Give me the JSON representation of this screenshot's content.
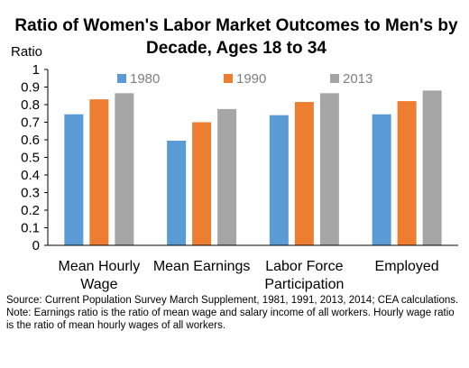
{
  "chart_data": {
    "type": "bar",
    "title_lines": [
      "Ratio of Women's Labor Market Outcomes to Men's by",
      "Decade, Ages 18 to 34"
    ],
    "ylabel": "Ratio",
    "xlabel": "",
    "ylim": [
      0,
      1
    ],
    "yticks": [
      "0",
      "0.1",
      "0.2",
      "0.3",
      "0.4",
      "0.5",
      "0.6",
      "0.7",
      "0.8",
      "0.9",
      "1"
    ],
    "categories": [
      [
        "Mean Hourly",
        "Wage"
      ],
      [
        "Mean Earnings"
      ],
      [
        "Labor Force",
        "Participation"
      ],
      [
        "Employed"
      ]
    ],
    "series": [
      {
        "name": "1980",
        "color": "#5b9bd5",
        "values": [
          0.745,
          0.595,
          0.74,
          0.745
        ]
      },
      {
        "name": "1990",
        "color": "#ed7d31",
        "values": [
          0.83,
          0.7,
          0.815,
          0.82
        ]
      },
      {
        "name": "2013",
        "color": "#a5a5a5",
        "values": [
          0.865,
          0.775,
          0.865,
          0.88
        ]
      }
    ],
    "grid": false,
    "legend_position": "top"
  },
  "notes": {
    "source": "Source: Current Population Survey March Supplement, 1981, 1991, 2013, 2014; CEA calculations.",
    "note": "Note: Earnings ratio is the ratio of mean wage and salary income of all workers. Hourly wage ratio is the ratio of mean hourly wages of all workers."
  }
}
